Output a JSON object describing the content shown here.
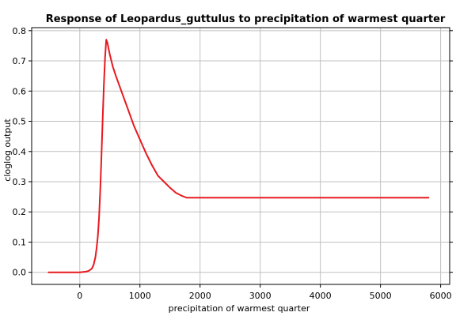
{
  "chart_data": {
    "type": "line",
    "title": "Response of Leopardus_guttulus to precipitation of warmest quarter",
    "xlabel": "precipitation of warmest quarter",
    "ylabel": "cloglog output",
    "xlim": [
      -800,
      6150
    ],
    "ylim": [
      -0.04,
      0.81
    ],
    "x_ticks": [
      0,
      1000,
      2000,
      3000,
      4000,
      5000,
      6000
    ],
    "x_tick_labels": [
      "0",
      "1000",
      "2000",
      "3000",
      "4000",
      "5000",
      "6000"
    ],
    "y_ticks": [
      0.0,
      0.1,
      0.2,
      0.3,
      0.4,
      0.5,
      0.6,
      0.7,
      0.8
    ],
    "y_tick_labels": [
      "0.0",
      "0.1",
      "0.2",
      "0.3",
      "0.4",
      "0.5",
      "0.6",
      "0.7",
      "0.8"
    ],
    "grid": true,
    "series_color": "#e8191e",
    "series": [
      {
        "x": [
          -520,
          0,
          100,
          150,
          200,
          230,
          260,
          280,
          300,
          320,
          340,
          360,
          380,
          400,
          420,
          440,
          460,
          480,
          500,
          550,
          600,
          700,
          800,
          900,
          1000,
          1100,
          1200,
          1300,
          1400,
          1500,
          1600,
          1700,
          1780,
          2000,
          3000,
          4000,
          5000,
          5800
        ],
        "y": [
          0.0,
          0.0,
          0.002,
          0.005,
          0.012,
          0.025,
          0.05,
          0.08,
          0.12,
          0.18,
          0.27,
          0.38,
          0.5,
          0.62,
          0.71,
          0.77,
          0.76,
          0.74,
          0.72,
          0.68,
          0.65,
          0.595,
          0.54,
          0.485,
          0.44,
          0.395,
          0.355,
          0.32,
          0.3,
          0.28,
          0.263,
          0.253,
          0.247,
          0.247,
          0.247,
          0.247,
          0.247,
          0.247
        ]
      }
    ]
  }
}
